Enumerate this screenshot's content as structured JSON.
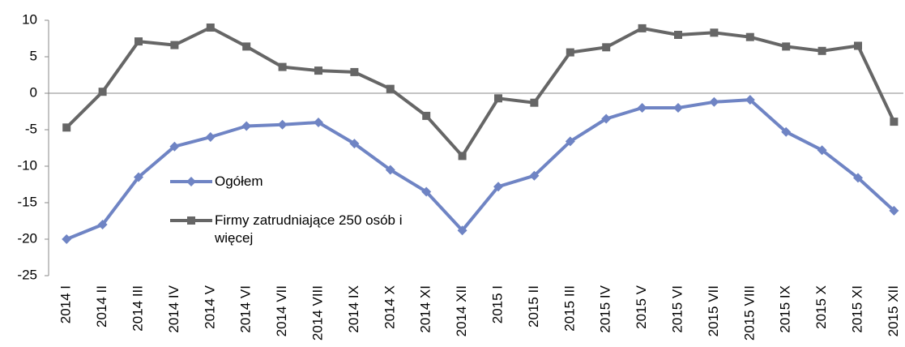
{
  "chart_data": {
    "type": "line",
    "categories": [
      "2014 I",
      "2014 II",
      "2014 III",
      "2014 IV",
      "2014 V",
      "2014 VI",
      "2014 VII",
      "2014 VIII",
      "2014 IX",
      "2014 X",
      "2014 XI",
      "2014 XII",
      "2015 I",
      "2015 II",
      "2015 III",
      "2015 IV",
      "2015 V",
      "2015 VI",
      "2015 VII",
      "2015 VIII",
      "2015 IX",
      "2015 X",
      "2015 XI",
      "2015 XII"
    ],
    "series": [
      {
        "name": "Ogółem",
        "color": "#6f84c4",
        "marker": "diamond",
        "values": [
          -20,
          -18,
          -11.5,
          -7.3,
          -6,
          -4.5,
          -4.3,
          -4,
          -6.9,
          -10.5,
          -13.5,
          -18.8,
          -12.8,
          -11.3,
          -6.6,
          -3.5,
          -2,
          -2,
          -1.2,
          -0.9,
          -5.3,
          -7.8,
          -11.6,
          -16.1
        ]
      },
      {
        "name": "Firmy zatrudniające 250 osób i więcej",
        "color": "#666666",
        "marker": "square",
        "values": [
          -4.7,
          0.2,
          7.1,
          6.6,
          9,
          6.4,
          3.6,
          3.1,
          2.9,
          0.6,
          -3.1,
          -8.6,
          -0.7,
          -1.3,
          5.6,
          6.3,
          8.9,
          8,
          8.3,
          7.7,
          6.4,
          5.8,
          6.5,
          -3.9
        ]
      }
    ],
    "ylim": [
      -25,
      10
    ],
    "yticks": [
      -25,
      -20,
      -15,
      -10,
      -5,
      0,
      5,
      10
    ],
    "grid": false
  }
}
